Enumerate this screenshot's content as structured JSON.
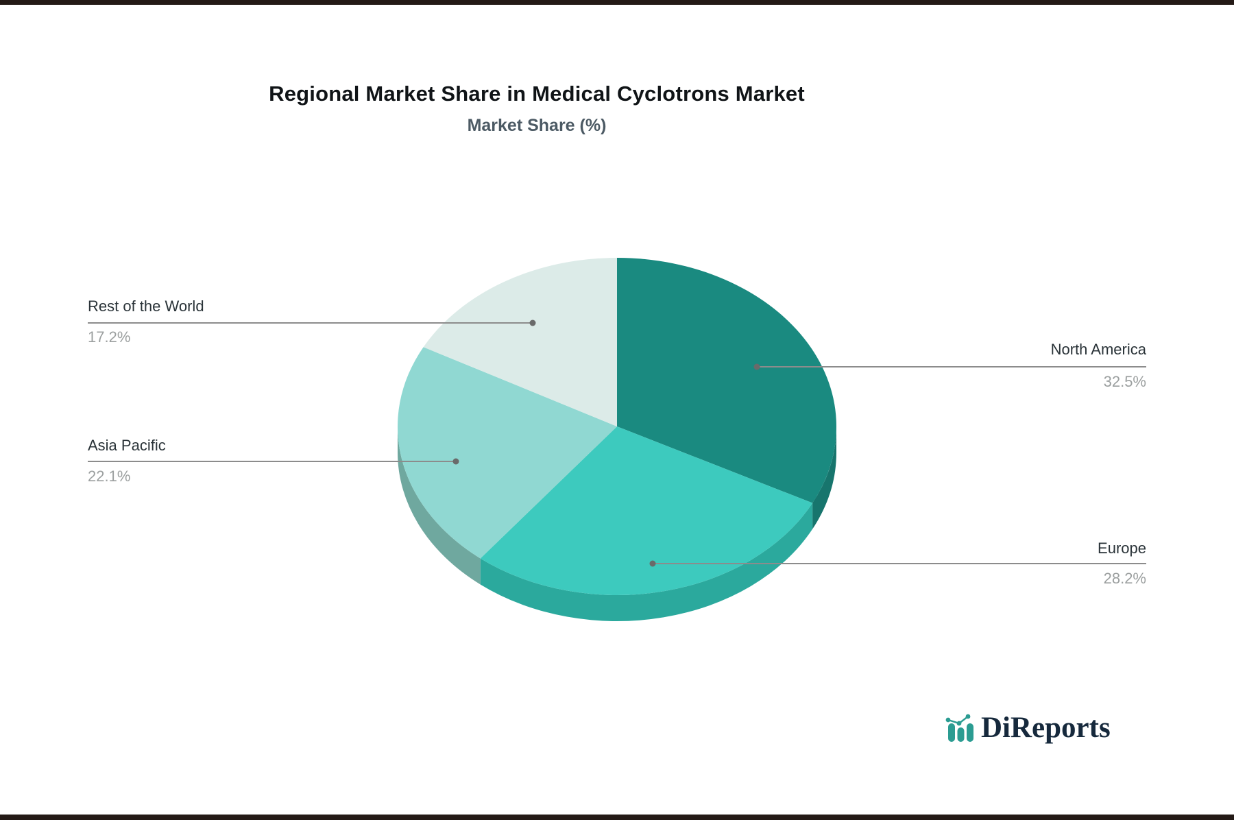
{
  "title": "Regional Market Share in Medical Cyclotrons Market",
  "subtitle": "Market Share (%)",
  "chart_data": {
    "type": "pie",
    "style": "3d",
    "title": "Regional Market Share in Medical Cyclotrons Market",
    "subtitle": "Market Share (%)",
    "unit": "%",
    "start_angle": "12-oclock",
    "direction": "clockwise",
    "legend": "none",
    "labels": [
      "North America",
      "Europe",
      "Asia Pacific",
      "Rest of the World"
    ],
    "values": [
      32.5,
      28.2,
      22.1,
      17.2
    ],
    "display_values": [
      "32.5%",
      "28.2%",
      "22.1%",
      "17.2%"
    ],
    "colors": [
      "#1a8a80",
      "#3dcabe",
      "#90d8d2",
      "#dcebe8"
    ],
    "depth_colors": [
      "#17756d",
      "#2ba99d",
      "#6fa89f",
      "#b7cfca"
    ],
    "leader_line_color": "#8c8c8c",
    "leader_dot_color": "#6a6a6a",
    "label_color": "#2a3338",
    "value_color": "#9b9f9f"
  },
  "logo": {
    "brand": "DiReports",
    "icon": "bar-line-chart-icon",
    "icon_color": "#2b9c92",
    "text_color": "#16293c"
  }
}
